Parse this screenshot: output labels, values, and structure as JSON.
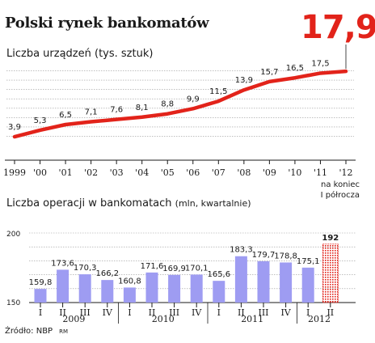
{
  "header": {
    "title": "Polski rynek bankomatów",
    "highlight_value": "17,9",
    "highlight_color": "#e2231a"
  },
  "source_line": {
    "text": "Źródło: NBP",
    "credit": "RM"
  },
  "chart_data": [
    {
      "type": "line",
      "title": "Liczba urządzeń (tys. sztuk)",
      "color": "#e2231a",
      "x": [
        "1999",
        "'00",
        "'01",
        "'02",
        "'03",
        "'04",
        "'05",
        "'06",
        "'07",
        "'08",
        "'09",
        "'10",
        "'11",
        "'12"
      ],
      "labels": [
        "3,9",
        "5,3",
        "6,5",
        "7,1",
        "7,6",
        "8,1",
        "8,8",
        "9,9",
        "11,5",
        "13,9",
        "15,7",
        "16,5",
        "17,5",
        "17,9"
      ],
      "values": [
        3.9,
        5.3,
        6.5,
        7.1,
        7.6,
        8.1,
        8.8,
        9.9,
        11.5,
        13.9,
        15.7,
        16.5,
        17.5,
        17.9
      ],
      "ylim": [
        2,
        20
      ],
      "grid": true,
      "annotation": "na koniec I półrocza"
    },
    {
      "type": "bar",
      "title": "Liczba operacji w bankomatach",
      "title_unit": "(mln, kwartalnie)",
      "color": "#9e9cf2",
      "forecast_color": "#e2231a",
      "categories": [
        "I",
        "II",
        "III",
        "IV",
        "I",
        "II",
        "III",
        "IV",
        "I",
        "II",
        "III",
        "IV",
        "I",
        "II"
      ],
      "years": [
        "2009",
        "2010",
        "2011",
        "2012"
      ],
      "labels": [
        "159,8",
        "173,6",
        "170,3",
        "166,2",
        "160,8",
        "171,6",
        "169,9",
        "170,1",
        "165,6",
        "183,3",
        "179,7",
        "178,8",
        "175,1",
        "192"
      ],
      "values": [
        159.8,
        173.6,
        170.3,
        166.2,
        160.8,
        171.6,
        169.9,
        170.1,
        165.6,
        183.3,
        179.7,
        178.8,
        175.1,
        192
      ],
      "forecast_index": 13,
      "ylim": [
        150,
        200
      ],
      "yticks": [
        "150",
        "200"
      ],
      "grid": true
    }
  ]
}
